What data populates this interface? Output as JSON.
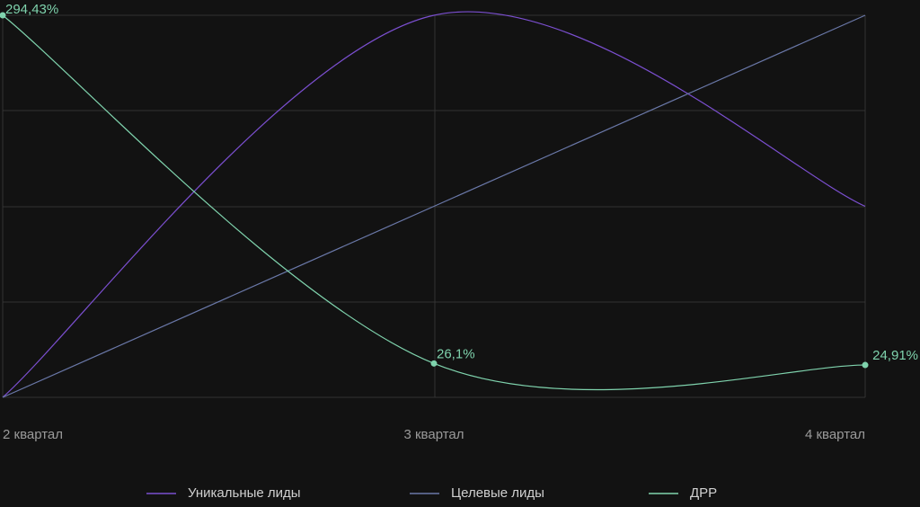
{
  "chart_data": {
    "type": "line",
    "categories": [
      "2 квартал",
      "3 квартал",
      "4 квартал"
    ],
    "series": [
      {
        "name": "Уникальные лиды",
        "color": "#7b4fd0",
        "values": [
          0,
          100,
          50
        ]
      },
      {
        "name": "Целевые лиды",
        "color": "#6a78a8",
        "values": [
          0,
          50,
          100
        ]
      },
      {
        "name": "ДРР",
        "color": "#7fd3ad",
        "values": [
          294.43,
          26.1,
          24.91
        ],
        "value_labels": [
          "294,43%",
          "26,1%",
          "24,91%"
        ]
      }
    ],
    "grid": true,
    "legend": "bottom"
  }
}
